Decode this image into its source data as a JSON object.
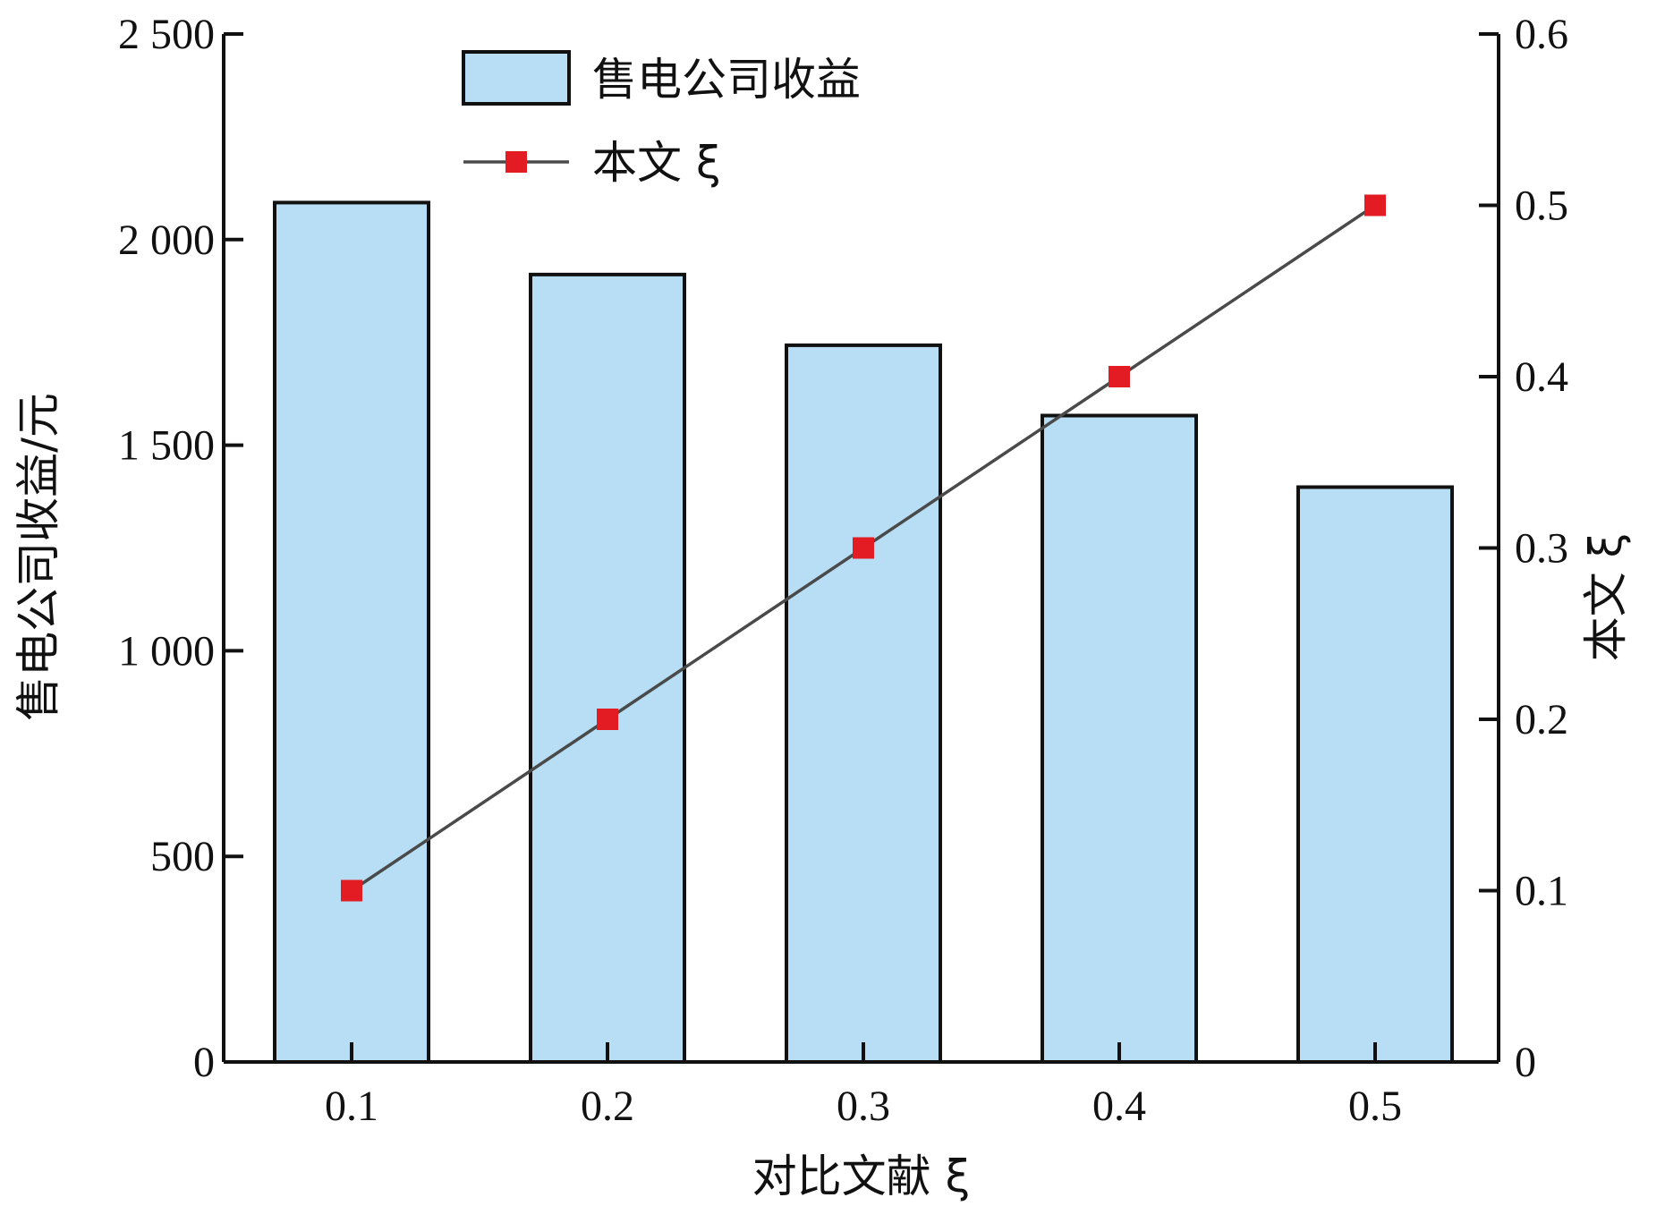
{
  "chart_data": {
    "type": "bar",
    "categories": [
      "0.1",
      "0.2",
      "0.3",
      "0.4",
      "0.5"
    ],
    "series": [
      {
        "name": "售电公司收益",
        "type": "bar",
        "axis": "left",
        "values": [
          2090,
          1915,
          1743,
          1572,
          1398
        ]
      },
      {
        "name": "本文 ξ",
        "type": "line",
        "axis": "right",
        "values": [
          0.1,
          0.2,
          0.3,
          0.4,
          0.5
        ]
      }
    ],
    "xlabel": "对比文献 ξ",
    "ylabel": "售电公司收益/元",
    "y2label": "本文 ξ",
    "ylim": [
      0,
      2500
    ],
    "y2lim": [
      0,
      0.6
    ],
    "yticks": [
      "0",
      "500",
      "1 000",
      "1 500",
      "2 000",
      "2 500"
    ],
    "yticks_values": [
      0,
      500,
      1000,
      1500,
      2000,
      2500
    ],
    "y2ticks": [
      "0",
      "0.1",
      "0.2",
      "0.3",
      "0.4",
      "0.5",
      "0.6"
    ],
    "y2ticks_values": [
      0,
      0.1,
      0.2,
      0.3,
      0.4,
      0.5,
      0.6
    ],
    "legend_position": "top-center",
    "grid": false,
    "colors": {
      "bar_fill": "#b7def4",
      "bar_stroke": "#111111",
      "line": "#4a4a4a",
      "marker": "#e31b23"
    }
  }
}
